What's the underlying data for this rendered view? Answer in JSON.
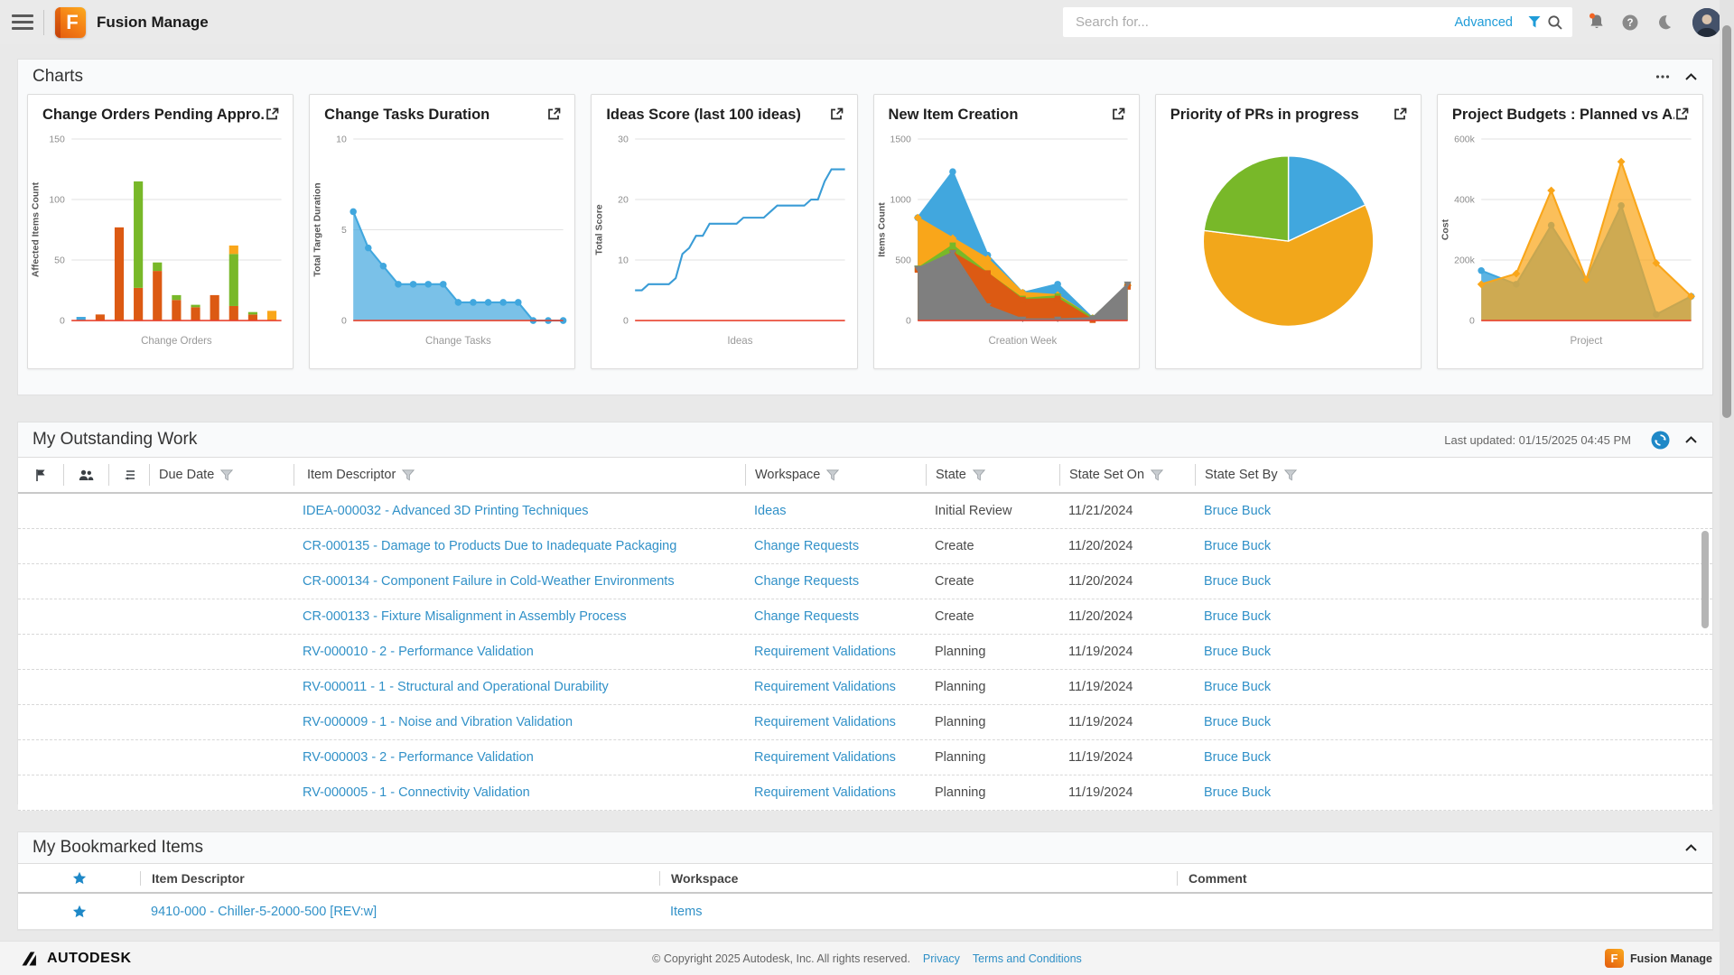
{
  "topbar": {
    "title": "Fusion Manage",
    "search_placeholder": "Search for...",
    "advanced_label": "Advanced"
  },
  "charts_section": {
    "title": "Charts"
  },
  "chart_data": [
    {
      "type": "bar",
      "stacked": true,
      "title": "Change Orders Pending Appro...",
      "xlabel": "Change Orders",
      "ylabel": "Affected Items Count",
      "ylim": [
        0,
        150
      ],
      "yticks": [
        0,
        50,
        100,
        150
      ],
      "series": [
        {
          "name": "blue",
          "color": "#41a7de",
          "values": [
            3,
            0,
            0,
            0,
            0,
            0,
            0,
            0,
            0,
            0,
            0
          ]
        },
        {
          "name": "orange",
          "color": "#dc5a13",
          "values": [
            0,
            5,
            77,
            27,
            41,
            17,
            11,
            21,
            12,
            5,
            0
          ]
        },
        {
          "name": "green",
          "color": "#78b829",
          "values": [
            0,
            0,
            0,
            88,
            7,
            4,
            2,
            0,
            43,
            2,
            0
          ]
        },
        {
          "name": "yellow",
          "color": "#f9a61a",
          "values": [
            0,
            0,
            0,
            0,
            0,
            0,
            0,
            0,
            7,
            0,
            8
          ]
        }
      ]
    },
    {
      "type": "area",
      "title": "Change Tasks Duration",
      "xlabel": "Change Tasks",
      "ylabel": "Total Target Duration",
      "ylim": [
        0,
        10
      ],
      "yticks": [
        0,
        5,
        10
      ],
      "series": [
        {
          "name": "duration",
          "color": "#41a7de",
          "fill_opacity": 0.7,
          "marker": "circle",
          "values": [
            6,
            4,
            3,
            2,
            2,
            2,
            2,
            1,
            1,
            1,
            1,
            1,
            0,
            0,
            0
          ]
        }
      ]
    },
    {
      "type": "line",
      "title": "Ideas Score (last 100 ideas)",
      "xlabel": "Ideas",
      "ylabel": "Total Score",
      "ylim": [
        0,
        30
      ],
      "yticks": [
        0,
        10,
        20,
        30
      ],
      "series": [
        {
          "name": "score",
          "color": "#3a9cd6",
          "values": [
            5,
            5,
            6,
            6,
            6,
            6,
            7,
            11,
            12,
            14,
            14,
            16,
            16,
            16,
            16,
            16,
            17,
            17,
            17,
            17,
            18,
            19,
            19,
            19,
            19,
            19,
            20,
            20,
            23,
            25,
            25,
            25
          ]
        }
      ]
    },
    {
      "type": "area",
      "title": "New Item Creation",
      "xlabel": "Creation Week",
      "ylabel": "Items Count",
      "ylim": [
        0,
        1500
      ],
      "yticks": [
        0,
        500,
        1000,
        1500
      ],
      "series": [
        {
          "name": "blue",
          "color": "#41a7de",
          "marker": "circle",
          "values": [
            850,
            1230,
            540,
            230,
            300,
            20,
            290
          ]
        },
        {
          "name": "yellow",
          "color": "#f9a61a",
          "marker": "diamond",
          "values": [
            850,
            680,
            510,
            230,
            210,
            20,
            290
          ]
        },
        {
          "name": "green",
          "color": "#78b829",
          "marker": "square",
          "values": [
            430,
            620,
            390,
            180,
            200,
            20,
            290
          ]
        },
        {
          "name": "orange",
          "color": "#dc5a13",
          "marker": "square",
          "values": [
            420,
            560,
            390,
            170,
            180,
            5,
            280
          ]
        },
        {
          "name": "grey",
          "color": "#7f7f7f",
          "marker": "triangle",
          "values": [
            430,
            560,
            120,
            10,
            10,
            20,
            300
          ]
        }
      ]
    },
    {
      "type": "pie",
      "title": "Priority of PRs in progress",
      "slices": [
        {
          "name": "blue",
          "color": "#41a7de",
          "value": 18
        },
        {
          "name": "orange",
          "color": "#f2a71b",
          "value": 59
        },
        {
          "name": "green",
          "color": "#78b829",
          "value": 23
        }
      ]
    },
    {
      "type": "area",
      "title": "Project Budgets : Planned vs A...",
      "xlabel": "Project",
      "ylabel": "Cost",
      "ylim": [
        0,
        600000
      ],
      "yticks": [
        0,
        200000,
        400000,
        600000
      ],
      "ytick_labels": [
        "0",
        "200k",
        "400k",
        "600k"
      ],
      "series": [
        {
          "name": "actual",
          "color": "#41a7de",
          "fill_opacity": 0.85,
          "marker": "circle",
          "values": [
            165000,
            120000,
            315000,
            135000,
            380000,
            20000,
            80000
          ]
        },
        {
          "name": "planned",
          "color": "#f9a61a",
          "fill_opacity": 0.72,
          "marker": "diamond",
          "values": [
            120000,
            155000,
            430000,
            135000,
            525000,
            190000,
            80000
          ]
        }
      ]
    }
  ],
  "outstanding": {
    "title": "My Outstanding Work",
    "last_updated": "Last updated: 01/15/2025 04:45 PM",
    "columns": [
      "Due Date",
      "Item Descriptor",
      "Workspace",
      "State",
      "State Set On",
      "State Set By"
    ],
    "rows": [
      {
        "descriptor": "IDEA-000032 - Advanced 3D Printing Techniques",
        "workspace": "Ideas",
        "state": "Initial Review",
        "state_set_on": "11/21/2024",
        "state_set_by": "Bruce Buck"
      },
      {
        "descriptor": "CR-000135 - Damage to Products Due to Inadequate Packaging",
        "workspace": "Change Requests",
        "state": "Create",
        "state_set_on": "11/20/2024",
        "state_set_by": "Bruce Buck"
      },
      {
        "descriptor": "CR-000134 - Component Failure in Cold-Weather Environments",
        "workspace": "Change Requests",
        "state": "Create",
        "state_set_on": "11/20/2024",
        "state_set_by": "Bruce Buck"
      },
      {
        "descriptor": "CR-000133 - Fixture Misalignment in Assembly Process",
        "workspace": "Change Requests",
        "state": "Create",
        "state_set_on": "11/20/2024",
        "state_set_by": "Bruce Buck"
      },
      {
        "descriptor": "RV-000010 - 2 - Performance Validation",
        "workspace": "Requirement Validations",
        "state": "Planning",
        "state_set_on": "11/19/2024",
        "state_set_by": "Bruce Buck"
      },
      {
        "descriptor": "RV-000011 - 1 - Structural and Operational Durability",
        "workspace": "Requirement Validations",
        "state": "Planning",
        "state_set_on": "11/19/2024",
        "state_set_by": "Bruce Buck"
      },
      {
        "descriptor": "RV-000009 - 1 - Noise and Vibration Validation",
        "workspace": "Requirement Validations",
        "state": "Planning",
        "state_set_on": "11/19/2024",
        "state_set_by": "Bruce Buck"
      },
      {
        "descriptor": "RV-000003 - 2 - Performance Validation",
        "workspace": "Requirement Validations",
        "state": "Planning",
        "state_set_on": "11/19/2024",
        "state_set_by": "Bruce Buck"
      },
      {
        "descriptor": "RV-000005 - 1 - Connectivity Validation",
        "workspace": "Requirement Validations",
        "state": "Planning",
        "state_set_on": "11/19/2024",
        "state_set_by": "Bruce Buck"
      }
    ]
  },
  "bookmarked": {
    "title": "My Bookmarked Items",
    "columns": [
      "Item Descriptor",
      "Workspace",
      "Comment"
    ],
    "rows": [
      {
        "descriptor": "9410-000 - Chiller-5-2000-500 [REV:w]",
        "workspace": "Items",
        "comment": ""
      }
    ]
  },
  "footer": {
    "brand": "AUTODESK",
    "copyright": "© Copyright 2025 Autodesk, Inc. All rights reserved.",
    "privacy_label": "Privacy",
    "terms_label": "Terms and Conditions",
    "badge_label": "Fusion Manage"
  },
  "colors": {
    "link_blue": "#3191c8",
    "accent_blue": "#1f9cd8",
    "baseline_red": "#e8432e",
    "chart_blue": "#41a7de",
    "chart_orange": "#dc5a13",
    "chart_green": "#78b829",
    "chart_yellow": "#f9a61a",
    "chart_grey": "#7f7f7f",
    "notification_orange": "#f26322"
  },
  "icons": [
    "menu-icon",
    "search-icon",
    "filter-icon",
    "bell-icon",
    "help-icon",
    "moon-icon",
    "flag-icon",
    "people-icon",
    "list-icon",
    "star-icon",
    "refresh-icon",
    "chevron-up-icon",
    "more-options-icon",
    "open-in-window-icon"
  ]
}
